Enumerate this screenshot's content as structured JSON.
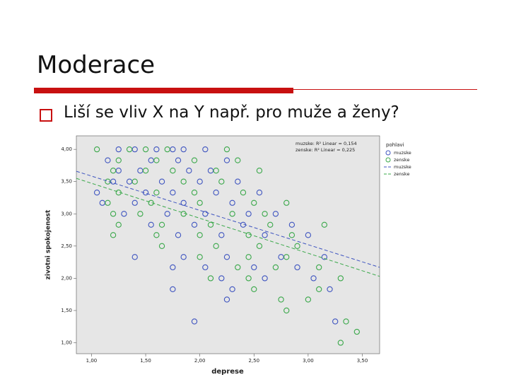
{
  "slide": {
    "title": "Moderace",
    "bullet": "Liší se vliv X na Y např. pro muže a ženy?"
  },
  "chart_data": {
    "type": "scatter",
    "x_label": "deprese",
    "y_label": "zivotni spokojenost",
    "xlim": [
      0.86,
      3.66
    ],
    "ylim": [
      0.83,
      4.21
    ],
    "xticks": [
      {
        "value": 1,
        "label": "1,00"
      },
      {
        "value": 1.5,
        "label": "1,50"
      },
      {
        "value": 2,
        "label": "2,00"
      },
      {
        "value": 2.5,
        "label": "2,50"
      },
      {
        "value": 3,
        "label": "3,00"
      },
      {
        "value": 3.5,
        "label": "3,50"
      }
    ],
    "yticks": [
      {
        "value": 1,
        "label": "1,00"
      },
      {
        "value": 1.5,
        "label": "1,50"
      },
      {
        "value": 2,
        "label": "2,00"
      },
      {
        "value": 2.5,
        "label": "2,50"
      },
      {
        "value": 3,
        "label": "3,00"
      },
      {
        "value": 3.5,
        "label": "3,50"
      },
      {
        "value": 4,
        "label": "4,00"
      }
    ],
    "legend_title": "pohlavi",
    "annotations": [
      "muzske: R² Linear = 0,154",
      "zenske: R² Linear = 0,225"
    ],
    "series": [
      {
        "name": "muzske",
        "color": "#3f55c0",
        "x": [
          1.25,
          1.4,
          1.6,
          1.75,
          1.85,
          2.05,
          1.15,
          1.55,
          1.8,
          2.25,
          1.25,
          1.45,
          1.9,
          2.1,
          1.2,
          1.35,
          1.65,
          2.0,
          2.35,
          1.05,
          1.5,
          1.75,
          2.15,
          2.55,
          1.1,
          1.4,
          1.85,
          2.3,
          1.3,
          1.7,
          2.05,
          2.45,
          2.7,
          1.55,
          1.95,
          2.4,
          2.85,
          1.8,
          2.2,
          2.6,
          3.0,
          1.4,
          1.85,
          2.25,
          2.75,
          3.15,
          1.75,
          2.05,
          2.5,
          2.9,
          2.2,
          2.6,
          3.05,
          1.75,
          2.3,
          3.2,
          2.25,
          1.95,
          3.25
        ],
        "values": [
          4.0,
          4.0,
          4.0,
          4.0,
          4.0,
          4.0,
          3.83,
          3.83,
          3.83,
          3.83,
          3.67,
          3.67,
          3.67,
          3.67,
          3.5,
          3.5,
          3.5,
          3.5,
          3.5,
          3.33,
          3.33,
          3.33,
          3.33,
          3.33,
          3.17,
          3.17,
          3.17,
          3.17,
          3.0,
          3.0,
          3.0,
          3.0,
          3.0,
          2.83,
          2.83,
          2.83,
          2.83,
          2.67,
          2.67,
          2.67,
          2.67,
          2.33,
          2.33,
          2.33,
          2.33,
          2.33,
          2.17,
          2.17,
          2.17,
          2.17,
          2.0,
          2.0,
          2.0,
          1.83,
          1.83,
          1.83,
          1.67,
          1.33,
          1.33
        ]
      },
      {
        "name": "zenske",
        "color": "#3aa84a",
        "x": [
          1.05,
          1.35,
          1.5,
          1.7,
          2.25,
          1.25,
          1.6,
          1.95,
          2.35,
          1.2,
          1.5,
          1.75,
          2.15,
          2.55,
          1.15,
          1.4,
          1.85,
          2.2,
          1.25,
          1.6,
          1.95,
          2.4,
          1.15,
          1.55,
          2.0,
          2.5,
          2.8,
          1.2,
          1.45,
          1.85,
          2.3,
          2.6,
          1.25,
          1.65,
          2.1,
          2.65,
          3.15,
          1.2,
          1.6,
          2.0,
          2.45,
          2.85,
          1.65,
          2.15,
          2.55,
          2.9,
          2.0,
          2.45,
          2.8,
          2.35,
          2.7,
          3.1,
          2.1,
          2.45,
          3.3,
          2.5,
          3.1,
          2.75,
          3.0,
          2.8,
          3.35,
          3.45,
          3.3
        ],
        "values": [
          4.0,
          4.0,
          4.0,
          4.0,
          4.0,
          3.83,
          3.83,
          3.83,
          3.83,
          3.67,
          3.67,
          3.67,
          3.67,
          3.67,
          3.5,
          3.5,
          3.5,
          3.5,
          3.33,
          3.33,
          3.33,
          3.33,
          3.17,
          3.17,
          3.17,
          3.17,
          3.17,
          3.0,
          3.0,
          3.0,
          3.0,
          3.0,
          2.83,
          2.83,
          2.83,
          2.83,
          2.83,
          2.67,
          2.67,
          2.67,
          2.67,
          2.67,
          2.5,
          2.5,
          2.5,
          2.5,
          2.33,
          2.33,
          2.33,
          2.17,
          2.17,
          2.17,
          2.0,
          2.0,
          2.0,
          1.83,
          1.83,
          1.67,
          1.67,
          1.5,
          1.33,
          1.17,
          1.0
        ]
      }
    ],
    "fit_lines": [
      {
        "name": "muzske",
        "color": "#3f55c0",
        "x": [
          0.86,
          3.66
        ],
        "values": [
          3.66,
          2.17
        ]
      },
      {
        "name": "zenske",
        "color": "#3aa84a",
        "x": [
          0.86,
          3.66
        ],
        "values": [
          3.55,
          2.03
        ]
      }
    ]
  }
}
